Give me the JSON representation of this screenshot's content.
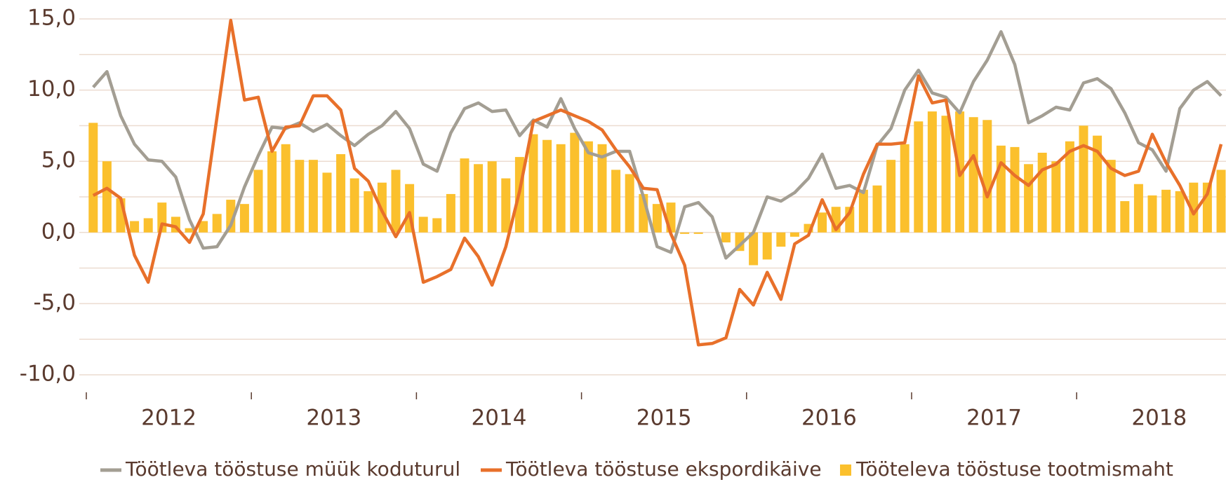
{
  "chart_data": {
    "type": "combo",
    "year_labels": [
      "2012",
      "2013",
      "2014",
      "2015",
      "2016",
      "2017",
      "2018"
    ],
    "months_per_year": 12,
    "ylim": [
      -10,
      15
    ],
    "yticks": [
      {
        "value": -10,
        "label": "-10,0"
      },
      {
        "value": -5,
        "label": "-5,0"
      },
      {
        "value": 0,
        "label": "0,0"
      },
      {
        "value": 5,
        "label": "5,0"
      },
      {
        "value": 10,
        "label": "10,0"
      },
      {
        "value": 15,
        "label": "15,0"
      }
    ],
    "ygrid": [
      -10,
      -7.5,
      -5,
      -2.5,
      0,
      2.5,
      5,
      7.5,
      10,
      12.5,
      15
    ],
    "grid": true,
    "series": [
      {
        "name": "Töötleva tööstuse müük koduturul",
        "type": "line",
        "color": "#a39e93",
        "values": [
          10.2,
          11.3,
          8.2,
          6.2,
          5.1,
          5.0,
          3.9,
          0.9,
          -1.1,
          -1.0,
          0.5,
          3.2,
          5.4,
          7.4,
          7.3,
          7.7,
          7.1,
          7.6,
          6.8,
          6.1,
          6.9,
          7.5,
          8.5,
          7.3,
          4.8,
          4.3,
          7.0,
          8.7,
          9.1,
          8.5,
          8.6,
          6.8,
          7.9,
          7.4,
          9.4,
          7.3,
          5.6,
          5.3,
          5.7,
          5.7,
          2.5,
          -1.0,
          -1.4,
          1.8,
          2.1,
          1.1,
          -1.8,
          -0.9,
          0.0,
          2.5,
          2.2,
          2.8,
          3.8,
          5.5,
          3.1,
          3.3,
          2.8,
          6.1,
          7.3,
          10.0,
          11.4,
          9.8,
          9.5,
          8.4,
          10.6,
          12.1,
          14.1,
          11.8,
          7.7,
          8.2,
          8.8,
          8.6,
          10.5,
          10.8,
          10.1,
          8.4,
          6.3,
          5.8,
          4.3,
          8.7,
          10.0,
          10.6,
          9.6
        ]
      },
      {
        "name": "Töötleva tööstuse ekspordikäive",
        "type": "line",
        "color": "#e8702a",
        "values": [
          2.6,
          3.1,
          2.4,
          -1.6,
          -3.5,
          0.6,
          0.4,
          -0.7,
          1.3,
          8.1,
          14.9,
          9.3,
          9.5,
          5.7,
          7.4,
          7.5,
          9.6,
          9.6,
          8.6,
          4.5,
          3.6,
          1.5,
          -0.3,
          1.4,
          -3.5,
          -3.1,
          -2.6,
          -0.4,
          -1.7,
          -3.7,
          -1.0,
          2.9,
          7.8,
          8.2,
          8.6,
          8.2,
          7.8,
          7.2,
          5.8,
          4.6,
          3.1,
          3.0,
          -0.1,
          -2.3,
          -7.9,
          -7.8,
          -7.4,
          -4.0,
          -5.1,
          -2.8,
          -4.7,
          -0.8,
          -0.2,
          2.3,
          0.2,
          1.4,
          4.1,
          6.2,
          6.2,
          6.3,
          11.0,
          9.1,
          9.3,
          4.0,
          5.4,
          2.5,
          4.9,
          4.0,
          3.3,
          4.4,
          4.8,
          5.7,
          6.1,
          5.7,
          4.5,
          4.0,
          4.3,
          6.9,
          4.9,
          3.3,
          1.3,
          2.7,
          6.2
        ]
      },
      {
        "name": "Tööteleva tööstuse tootmismaht",
        "type": "bar",
        "color": "#fbc02d",
        "values": [
          7.7,
          5.0,
          2.4,
          0.8,
          1.0,
          2.1,
          1.1,
          0.3,
          0.8,
          1.3,
          2.3,
          2.0,
          4.4,
          5.7,
          6.2,
          5.1,
          5.1,
          4.2,
          5.5,
          3.8,
          2.9,
          3.5,
          4.4,
          3.4,
          1.1,
          1.0,
          2.7,
          5.2,
          4.8,
          5.0,
          3.8,
          5.3,
          6.9,
          6.5,
          6.2,
          7.0,
          6.4,
          6.2,
          4.4,
          4.1,
          2.7,
          2.0,
          2.1,
          -0.1,
          -0.1,
          0.0,
          -0.7,
          -1.3,
          -2.3,
          -1.9,
          -1.0,
          -0.3,
          0.6,
          1.4,
          1.8,
          1.8,
          3.0,
          3.3,
          5.1,
          6.2,
          7.8,
          8.5,
          8.2,
          8.5,
          8.1,
          7.9,
          6.1,
          6.0,
          4.8,
          5.6,
          5.0,
          6.4,
          7.5,
          6.8,
          5.1,
          2.2,
          3.4,
          2.6,
          3.0,
          2.9,
          3.5,
          3.5,
          4.4
        ]
      }
    ]
  }
}
